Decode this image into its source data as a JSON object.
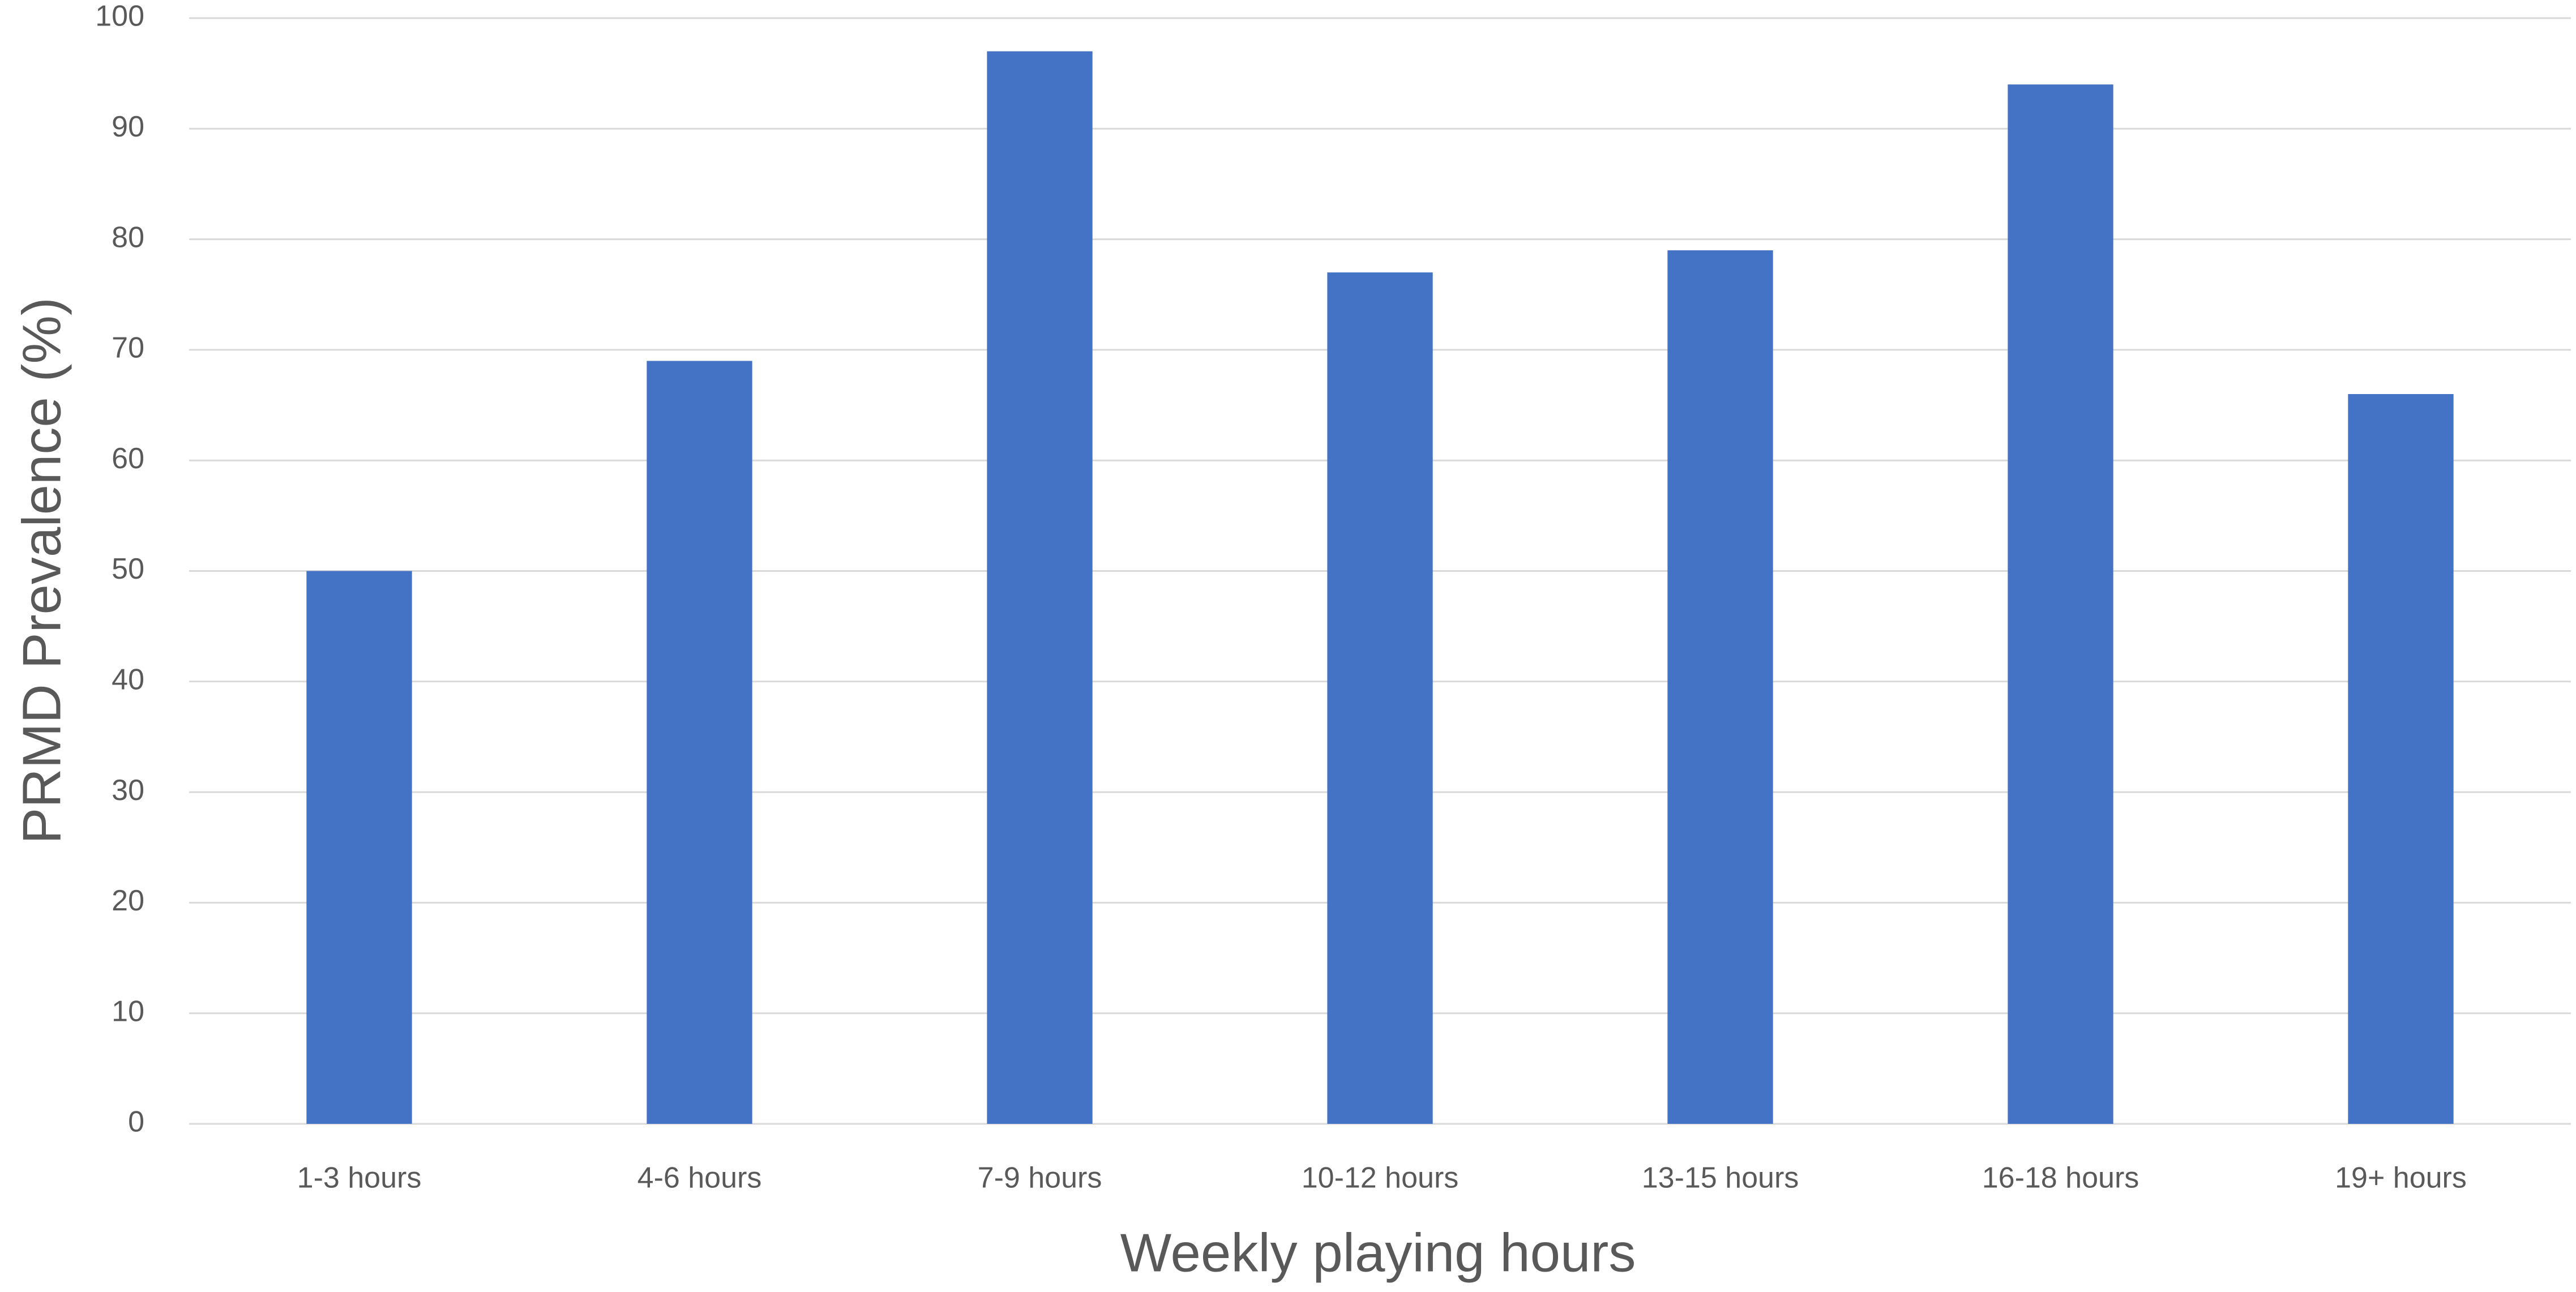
{
  "chart_data": {
    "type": "bar",
    "x_label": "Weekly playing hours",
    "y_label": "PRMD Prevalence (%)",
    "categories": [
      "1-3 hours",
      "4-6 hours",
      "7-9 hours",
      "10-12 hours",
      "13-15 hours",
      "16-18 hours",
      "19+ hours"
    ],
    "values": [
      50,
      69,
      97,
      77,
      79,
      94,
      66
    ],
    "color": "#4472c4",
    "ylim": [
      0,
      100
    ],
    "yticks": [
      0,
      10,
      20,
      30,
      40,
      50,
      60,
      70,
      80,
      90,
      100
    ],
    "grid": true
  }
}
